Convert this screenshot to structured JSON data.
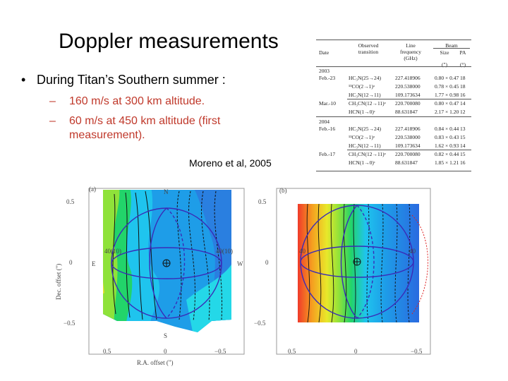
{
  "slide": {
    "title": "Doppler measurements",
    "bullet": "During Titan’s Southern summer :",
    "bullet_symbol": "•",
    "sub_symbol": "–",
    "sub1": "160 m/s at 300 km altitude.",
    "sub2_line1": "60 m/s at 450 km altitude (first",
    "sub2_line2": "measurement).",
    "citation": "Moreno et al, 2005"
  },
  "table": {
    "headers": {
      "date": "Date",
      "transition_line1": "Observed",
      "transition_line2": "transition",
      "freq_line1": "Line",
      "freq_line2": "frequency",
      "freq_unit": "(GHz)",
      "beam": "Beam",
      "size": "Size",
      "size_unit": "(\")",
      "pa": "PA",
      "pa_unit": "(°)"
    },
    "groups": [
      {
        "year": "2003",
        "rows": [
          {
            "date": "Feb.-23",
            "transition": "HC₃N(25→24)",
            "freq": "227.418906",
            "size": "0.80 × 0.47",
            "pa": "18"
          },
          {
            "date": "",
            "transition": "¹³CO(2→1)ᵃ",
            "freq": "220.538000",
            "size": "0.78 × 0.45",
            "pa": "18"
          },
          {
            "date": "",
            "transition": "HC₃N(12→11)",
            "freq": "109.173634",
            "size": "1.77 × 0.98",
            "pa": "16"
          },
          {
            "date": "Mar.-10",
            "transition": "CH₃CN(12→11)ᵃ",
            "freq": "220.700080",
            "size": "0.80 × 0.47",
            "pa": "14"
          },
          {
            "date": "",
            "transition": "HCN(1→0)ᶜ",
            "freq": "88.631847",
            "size": "2.17 × 1.20",
            "pa": "12"
          }
        ]
      },
      {
        "year": "2004",
        "rows": [
          {
            "date": "Feb.-16",
            "transition": "HC₃N(25→24)",
            "freq": "227.418906",
            "size": "0.84 × 0.44",
            "pa": "13"
          },
          {
            "date": "",
            "transition": "¹³CO(2→1)ᵃ",
            "freq": "220.538000",
            "size": "0.83 × 0.43",
            "pa": "15"
          },
          {
            "date": "",
            "transition": "HC₃N(12→11)",
            "freq": "109.173634",
            "size": "1.62 × 0.93",
            "pa": "14"
          },
          {
            "date": "Feb.-17",
            "transition": "CH₃CN(12→11)ᵃ",
            "freq": "220.700080",
            "size": "0.82 × 0.44",
            "pa": "15"
          },
          {
            "date": "",
            "transition": "HCN(1→0)ᶜ",
            "freq": "88.631847",
            "size": "1.85 × 1.21",
            "pa": "16"
          }
        ]
      }
    ]
  },
  "map_a": {
    "panel_label": "(a)",
    "y_tick_top": "0.5",
    "y_tick_mid": "0",
    "y_tick_bot": "−0.5",
    "x_tick_left": "0.5",
    "x_tick_mid": "0",
    "x_tick_right": "−0.5",
    "ylabel": "Dec. offset (\")",
    "xlabel": "R.A. offset (\")",
    "north": "N",
    "south": "S",
    "east": "E",
    "west": "W",
    "left_value": "40(10)",
    "right_value": "40(10)"
  },
  "map_b": {
    "panel_label": "(b)",
    "y_tick_top": "0.5",
    "y_tick_mid": "0",
    "y_tick_bot": "−0.5",
    "x_tick_left": "0.5",
    "x_tick_mid": "0",
    "x_tick_right": "−0.5",
    "left_value": "40",
    "right_value": "40"
  }
}
